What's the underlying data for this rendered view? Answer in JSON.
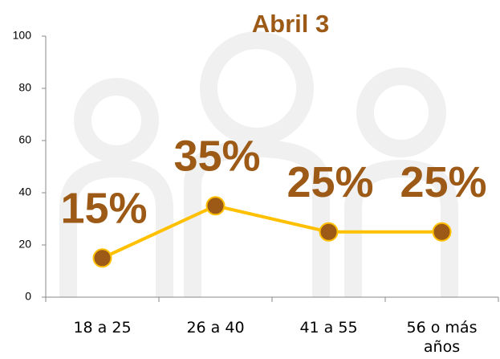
{
  "chart_data": {
    "type": "line",
    "title": "Abril 3",
    "categories": [
      "18 a 25",
      "26 a 40",
      "41 a 55",
      "56 o más años"
    ],
    "values": [
      15,
      35,
      25,
      25
    ],
    "value_labels": [
      "15%",
      "35%",
      "25%",
      "25%"
    ],
    "color": "#ffc000",
    "marker_color": "#9c5a16",
    "label_color": "#9c5a16",
    "ylim": [
      0,
      100
    ],
    "yticks": [
      0,
      20,
      40,
      60,
      80,
      100
    ]
  }
}
